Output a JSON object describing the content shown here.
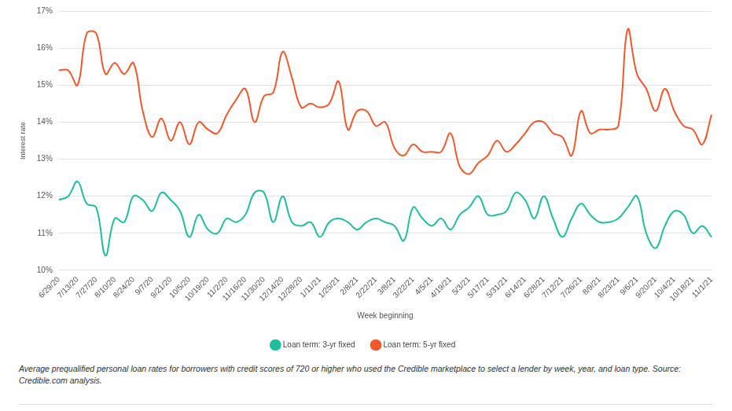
{
  "chart_data": {
    "type": "line",
    "y_label": "Interest rate",
    "x_label": "Week beginning",
    "caption": "Average prequalified personal loan rates for borrowers with credit scores of 720 or higher who used the Credible marketplace to select a lender by week, year, and loan type. Source: Credible.com analysis.",
    "categories": [
      "6/29/20",
      null,
      "7/13/20",
      null,
      "7/27/20",
      null,
      "8/10/20",
      null,
      "8/24/20",
      null,
      "9/7/20",
      null,
      "9/21/20",
      null,
      "10/5/20",
      null,
      "10/19/20",
      null,
      "11/2/20",
      null,
      "11/16/20",
      null,
      "11/30/20",
      null,
      "12/14/20",
      null,
      "12/28/20",
      null,
      "1/11/21",
      null,
      "1/25/21",
      null,
      "2/8/21",
      null,
      "2/22/21",
      null,
      "3/8/21",
      null,
      "3/22/21",
      null,
      "4/5/21",
      null,
      "4/19/21",
      null,
      "5/3/21",
      null,
      "5/17/21",
      null,
      "5/31/21",
      null,
      "6/14/21",
      null,
      "6/28/21",
      null,
      "7/12/21",
      null,
      "7/26/21",
      null,
      "8/9/21",
      null,
      "8/23/21",
      null,
      "9/6/21",
      null,
      "9/20/21",
      null,
      "10/4/21",
      null,
      "10/18/21",
      null,
      "11/1/21"
    ],
    "series": [
      {
        "name": "Loan term: 3-yr fixed",
        "color": "#1dbf9f",
        "values": [
          11.9,
          12.0,
          12.4,
          11.8,
          11.7,
          10.4,
          11.4,
          11.3,
          12.0,
          11.9,
          11.6,
          12.1,
          11.9,
          11.6,
          10.9,
          11.5,
          11.1,
          11.0,
          11.4,
          11.3,
          11.5,
          12.1,
          12.1,
          11.3,
          12.0,
          11.3,
          11.2,
          11.3,
          10.9,
          11.3,
          11.4,
          11.3,
          11.1,
          11.3,
          11.4,
          11.3,
          11.2,
          10.8,
          11.7,
          11.4,
          11.2,
          11.4,
          11.1,
          11.5,
          11.7,
          12.0,
          11.5,
          11.5,
          11.6,
          12.1,
          11.9,
          11.4,
          12.0,
          11.4,
          10.9,
          11.4,
          11.8,
          11.5,
          11.3,
          11.3,
          11.4,
          11.7,
          12.0,
          11.0,
          10.6,
          11.2,
          11.6,
          11.5,
          11.0,
          11.2,
          10.9
        ]
      },
      {
        "name": "Loan term: 5-yr fixed",
        "color": "#f4582a",
        "values": [
          15.4,
          15.4,
          15.0,
          16.4,
          16.4,
          15.3,
          15.6,
          15.3,
          15.6,
          14.3,
          13.6,
          14.1,
          13.5,
          14.0,
          13.4,
          14.0,
          13.8,
          13.7,
          14.2,
          14.6,
          14.9,
          14.0,
          14.7,
          14.8,
          15.9,
          15.2,
          14.4,
          14.5,
          14.4,
          14.5,
          15.1,
          13.8,
          14.3,
          14.3,
          13.9,
          14.0,
          13.3,
          13.1,
          13.4,
          13.2,
          13.2,
          13.2,
          13.7,
          12.8,
          12.6,
          12.9,
          13.1,
          13.5,
          13.2,
          13.4,
          13.7,
          14.0,
          14.0,
          13.7,
          13.6,
          13.1,
          14.3,
          13.7,
          13.8,
          13.8,
          13.9,
          16.5,
          15.3,
          14.9,
          14.3,
          14.9,
          14.3,
          13.9,
          13.8,
          13.4,
          14.2
        ]
      }
    ],
    "ylim": [
      10,
      17
    ],
    "yticks": [
      {
        "value": 10,
        "label": "10%"
      },
      {
        "value": 11,
        "label": "11%"
      },
      {
        "value": 12,
        "label": "12%"
      },
      {
        "value": 13,
        "label": "13%"
      },
      {
        "value": 14,
        "label": "14%"
      },
      {
        "value": 15,
        "label": "15%"
      },
      {
        "value": 16,
        "label": "16%"
      },
      {
        "value": 17,
        "label": "17%"
      }
    ],
    "grid": true,
    "legend": "bottom",
    "marker": "none",
    "line_style": "solid"
  }
}
